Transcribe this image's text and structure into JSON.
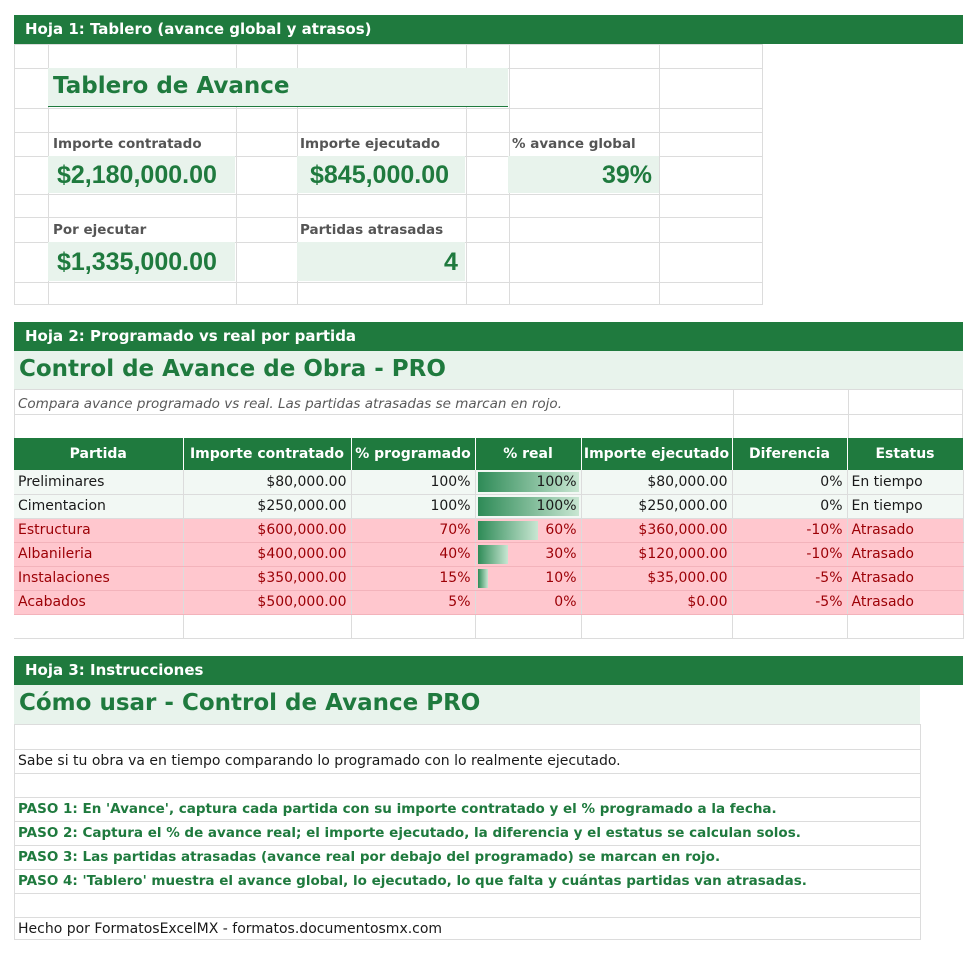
{
  "sheet1": {
    "band": "Hoja 1: Tablero (avance global y atrasos)",
    "title": "Tablero de Avance",
    "importe_contratado_label": "Importe contratado",
    "importe_contratado": "$2,180,000.00",
    "importe_ejecutado_label": "Importe ejecutado",
    "importe_ejecutado": "$845,000.00",
    "avance_global_label": "% avance global",
    "avance_global": "39%",
    "por_ejecutar_label": "Por ejecutar",
    "por_ejecutar": "$1,335,000.00",
    "partidas_atrasadas_label": "Partidas atrasadas",
    "partidas_atrasadas": "4"
  },
  "sheet2": {
    "band": "Hoja 2: Programado vs real por partida",
    "title": "Control de Avance de Obra - PRO",
    "subtitle": "Compara avance programado vs real. Las partidas atrasadas se marcan en rojo.",
    "headers": [
      "Partida",
      "Importe contratado",
      "% programado",
      "% real",
      "Importe ejecutado",
      "Diferencia",
      "Estatus"
    ],
    "rows": [
      {
        "partida": "Preliminares",
        "contratado": "$80,000.00",
        "programado": "100%",
        "real": "100%",
        "real_fraction": 1.0,
        "ejecutado": "$80,000.00",
        "diferencia": "0%",
        "estatus": "En tiempo",
        "late": false
      },
      {
        "partida": "Cimentacion",
        "contratado": "$250,000.00",
        "programado": "100%",
        "real": "100%",
        "real_fraction": 1.0,
        "ejecutado": "$250,000.00",
        "diferencia": "0%",
        "estatus": "En tiempo",
        "late": false
      },
      {
        "partida": "Estructura",
        "contratado": "$600,000.00",
        "programado": "70%",
        "real": "60%",
        "real_fraction": 0.6,
        "ejecutado": "$360,000.00",
        "diferencia": "-10%",
        "estatus": "Atrasado",
        "late": true
      },
      {
        "partida": "Albanileria",
        "contratado": "$400,000.00",
        "programado": "40%",
        "real": "30%",
        "real_fraction": 0.3,
        "ejecutado": "$120,000.00",
        "diferencia": "-10%",
        "estatus": "Atrasado",
        "late": true
      },
      {
        "partida": "Instalaciones",
        "contratado": "$350,000.00",
        "programado": "15%",
        "real": "10%",
        "real_fraction": 0.1,
        "ejecutado": "$35,000.00",
        "diferencia": "-5%",
        "estatus": "Atrasado",
        "late": true
      },
      {
        "partida": "Acabados",
        "contratado": "$500,000.00",
        "programado": "5%",
        "real": "0%",
        "real_fraction": 0.0,
        "ejecutado": "$0.00",
        "diferencia": "-5%",
        "estatus": "Atrasado",
        "late": true
      }
    ]
  },
  "sheet3": {
    "band": "Hoja 3: Instrucciones",
    "title": "Cómo usar - Control de Avance PRO",
    "intro": "Sabe si tu obra va en tiempo comparando lo programado con lo realmente ejecutado.",
    "steps": [
      "PASO 1: En 'Avance', captura cada partida con su importe contratado y el % programado a la fecha.",
      "PASO 2: Captura el % de avance real; el importe ejecutado, la diferencia y el estatus se calculan solos.",
      "PASO 3: Las partidas atrasadas (avance real por debajo del programado) se marcan en rojo.",
      "PASO 4: 'Tablero' muestra el avance global, lo ejecutado, lo que falta y cuántas partidas van atrasadas."
    ],
    "footer": "Hecho por FormatosExcelMX - formatos.documentosmx.com"
  },
  "colors": {
    "accent_green": "#1f7a3e",
    "light_green": "#e8f3ec",
    "late_bg": "#ffc7ce",
    "late_text": "#9c0006"
  }
}
